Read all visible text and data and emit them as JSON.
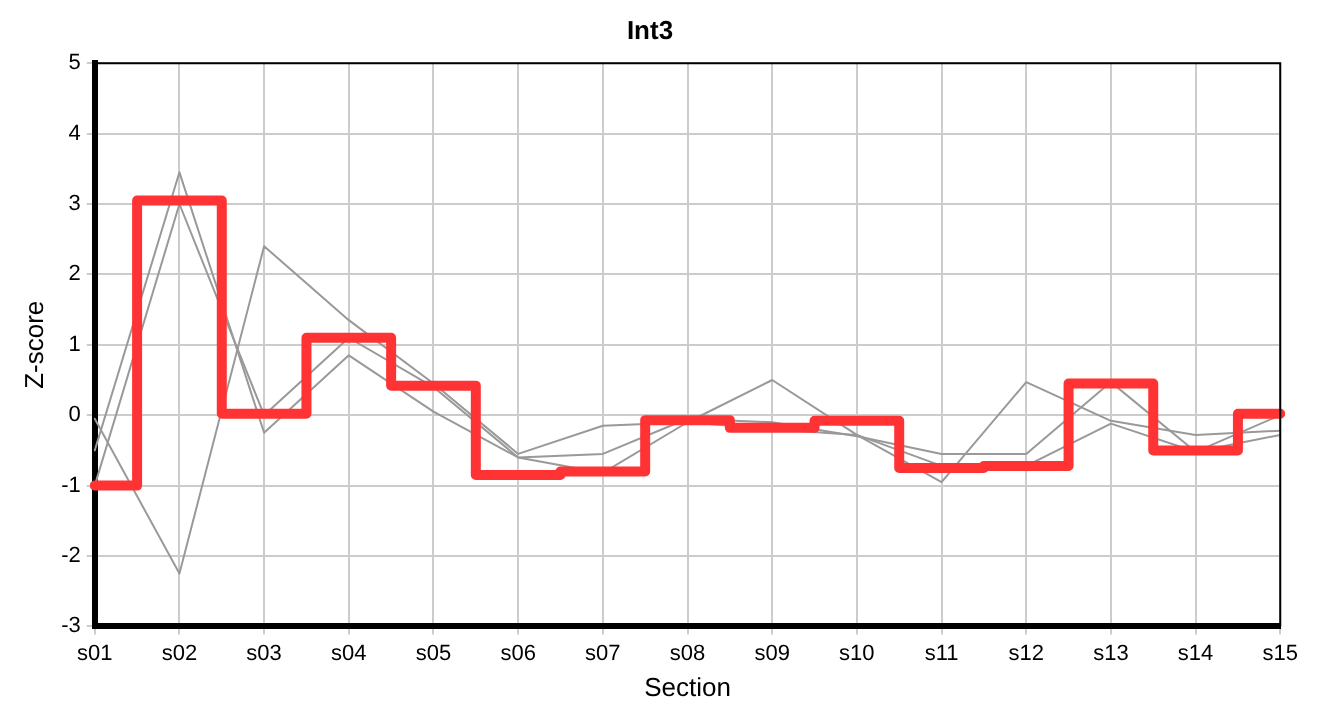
{
  "chart_data": {
    "type": "line",
    "title": "Int3",
    "xlabel": "Section",
    "ylabel": "Z-score",
    "categories": [
      "s01",
      "s02",
      "s03",
      "s04",
      "s05",
      "s06",
      "s07",
      "s08",
      "s09",
      "s10",
      "s11",
      "s12",
      "s13",
      "s14",
      "s15"
    ],
    "series": [
      {
        "color": "#999999",
        "values": [
          -0.05,
          -2.25,
          2.4,
          1.35,
          0.45,
          -0.55,
          -0.15,
          -0.1,
          0.5,
          -0.28,
          -0.95,
          0.47,
          -0.08,
          -0.28,
          -0.22
        ]
      },
      {
        "color": "#999999",
        "values": [
          -0.5,
          3.45,
          -0.25,
          0.85,
          0.05,
          -0.6,
          -0.55,
          -0.05,
          -0.1,
          -0.3,
          -0.55,
          -0.55,
          0.47,
          -0.52,
          -0.28
        ]
      },
      {
        "color": "#999999",
        "values": [
          -1.0,
          3.0,
          0.0,
          1.1,
          0.4,
          -0.6,
          -0.82,
          -0.1,
          -0.2,
          -0.28,
          -0.72,
          -0.72,
          -0.12,
          -0.52,
          0.0
        ]
      },
      {
        "type": "step",
        "color": "#ff3333",
        "values": [
          -1.0,
          3.05,
          0.02,
          1.1,
          0.42,
          -0.85,
          -0.8,
          -0.07,
          -0.18,
          -0.08,
          -0.75,
          -0.72,
          0.45,
          -0.5,
          0.02
        ]
      }
    ],
    "ylim": [
      -3,
      5
    ],
    "yticks": [
      -3,
      -2,
      -1,
      0,
      1,
      2,
      3,
      4,
      5
    ],
    "grid": true,
    "legend": false,
    "marker": "none"
  }
}
